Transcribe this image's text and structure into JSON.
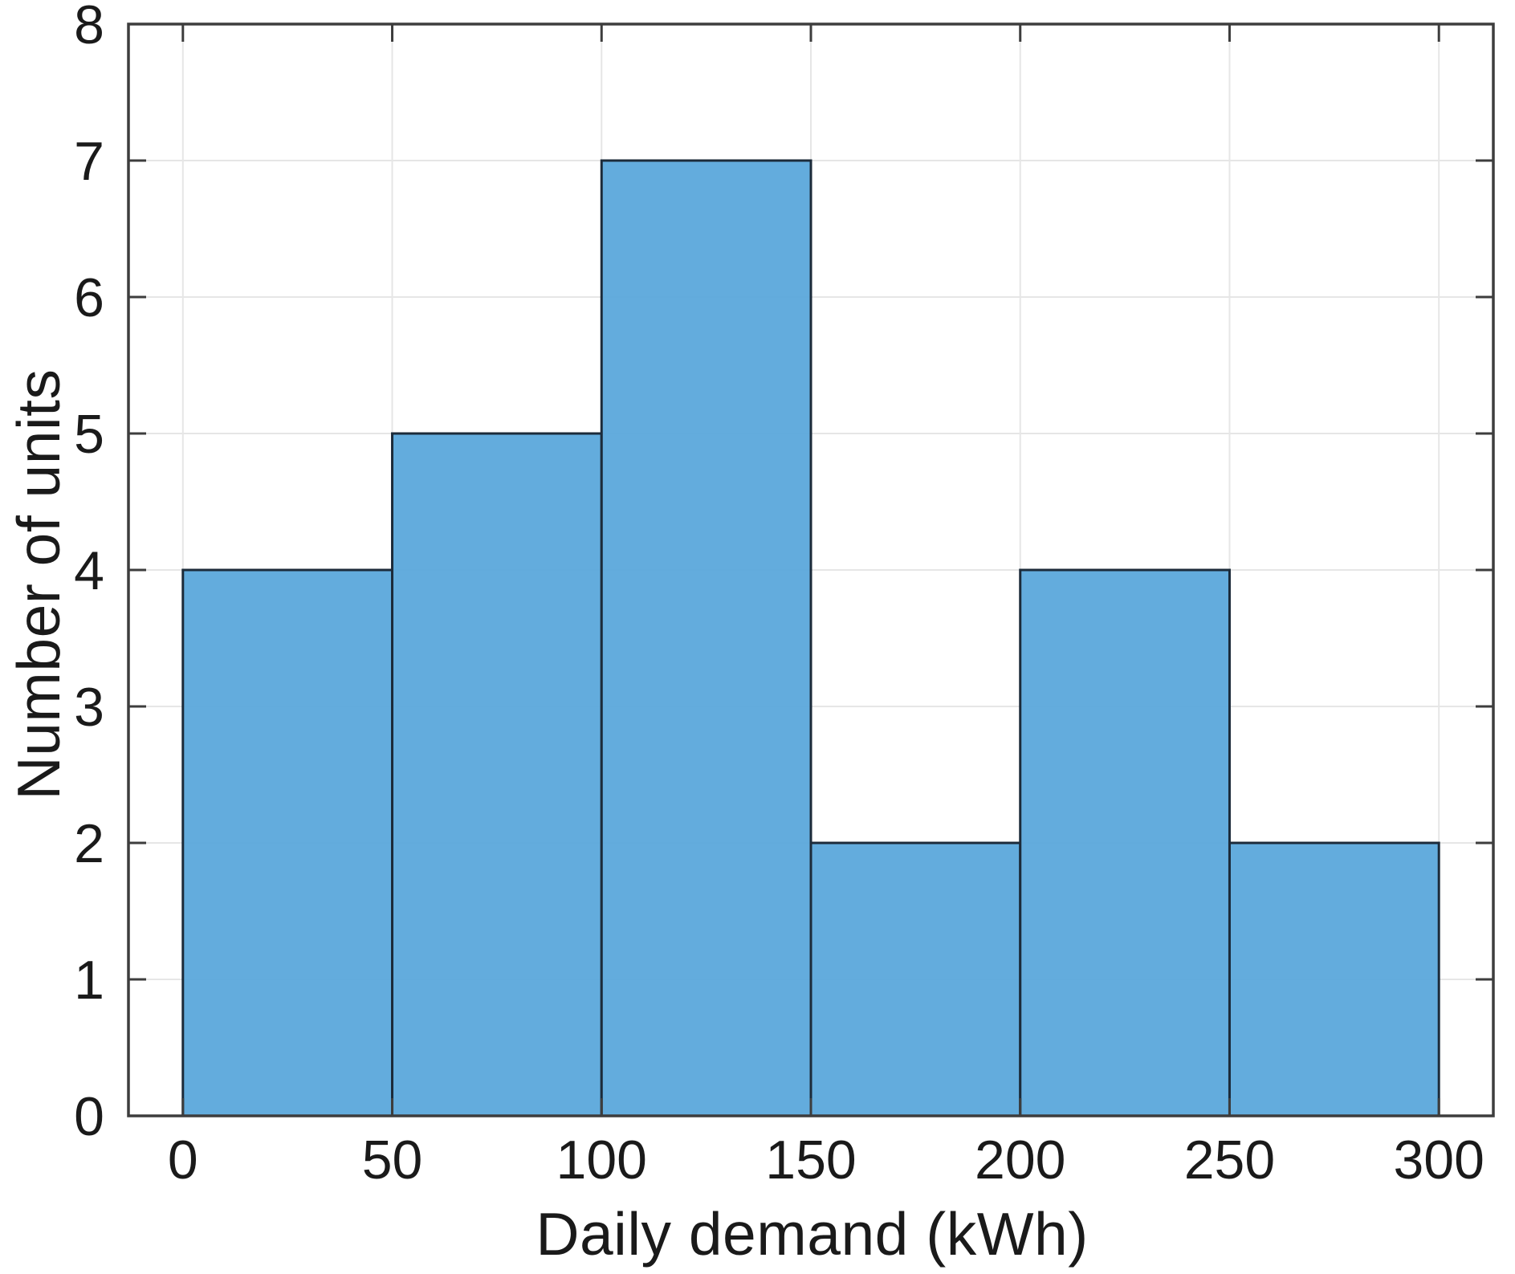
{
  "chart_data": {
    "type": "bar",
    "subtype": "histogram",
    "title": "",
    "xlabel": "Daily demand (kWh)",
    "ylabel": "Number of units",
    "bin_edges": [
      0,
      50,
      100,
      150,
      200,
      250,
      300
    ],
    "categories": [
      "0-50",
      "50-100",
      "100-150",
      "150-200",
      "200-250",
      "250-300"
    ],
    "values": [
      4,
      5,
      7,
      2,
      4,
      2
    ],
    "xlim": [
      -13,
      313
    ],
    "ylim": [
      0,
      8
    ],
    "xticks": [
      0,
      50,
      100,
      150,
      200,
      250,
      300
    ],
    "yticks": [
      0,
      1,
      2,
      3,
      4,
      5,
      6,
      7,
      8
    ],
    "grid": true,
    "legend_position": "none",
    "colors": {
      "bar_fill": "#5BA8DB",
      "bar_edge": "#1C2B3A",
      "grid_line": "#E6E6E6",
      "axis_line": "#3D3D3D",
      "tick_label": "#1A1A1A",
      "axis_label": "#1A1A1A",
      "background": "#FFFFFF"
    }
  }
}
